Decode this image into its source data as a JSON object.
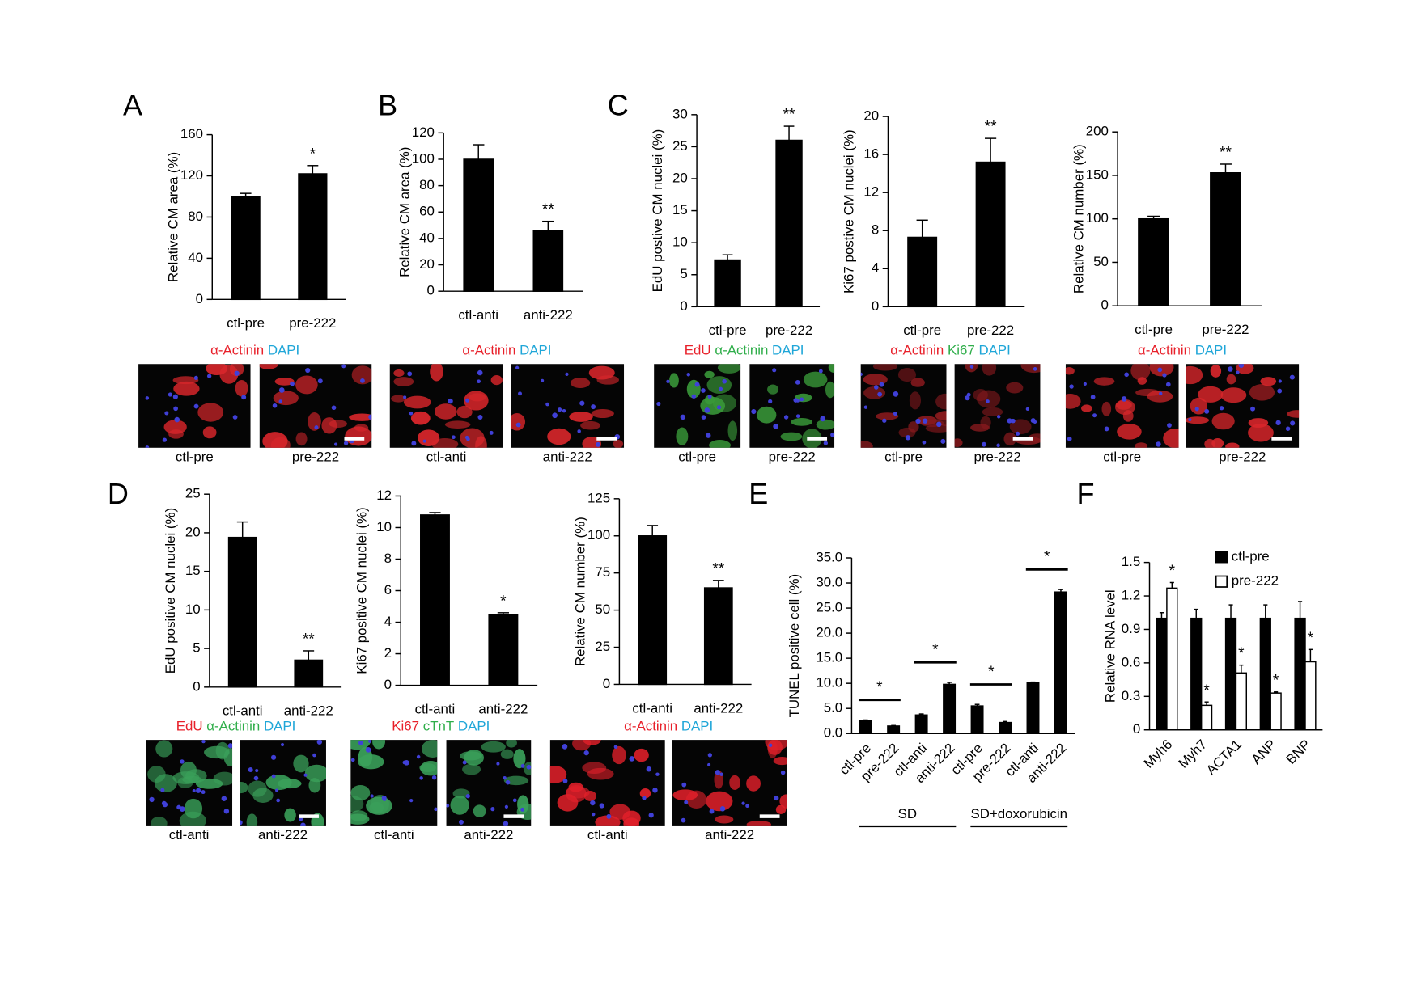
{
  "chart_data": [
    {
      "type": "bar",
      "panel": "A",
      "ylabel": "Relative CM area (%)",
      "categories": [
        "ctl-pre",
        "pre-222"
      ],
      "values": [
        100,
        122
      ],
      "errors": [
        3,
        8
      ],
      "significance": [
        null,
        "*"
      ],
      "color": "#000000",
      "ylim": [
        0,
        160
      ],
      "yticks": [
        0,
        40,
        80,
        120,
        160
      ],
      "micrographs": {
        "stain": [
          {
            "text": "α-Actinin",
            "color": "#e8202a"
          },
          {
            "text": "DAPI",
            "color": "#1fa6d8"
          }
        ],
        "labels": [
          "ctl-pre",
          "pre-222"
        ],
        "image_color": "#d8262b"
      }
    },
    {
      "type": "bar",
      "panel": "B",
      "ylabel": "Relative CM area (%)",
      "categories": [
        "ctl-anti",
        "anti-222"
      ],
      "values": [
        100,
        46
      ],
      "errors": [
        11,
        7
      ],
      "significance": [
        null,
        "**"
      ],
      "color": "#000000",
      "ylim": [
        0,
        120
      ],
      "yticks": [
        0,
        20,
        40,
        60,
        80,
        100,
        120
      ],
      "micrographs": {
        "stain": [
          {
            "text": "α-Actinin",
            "color": "#e8202a"
          },
          {
            "text": "DAPI",
            "color": "#1fa6d8"
          }
        ],
        "labels": [
          "ctl-anti",
          "anti-222"
        ],
        "image_color": "#d8262b"
      }
    },
    {
      "type": "bar",
      "panel": "C",
      "ylabel": "EdU postive CM nuclei (%)",
      "categories": [
        "ctl-pre",
        "pre-222"
      ],
      "values": [
        7.3,
        26
      ],
      "errors": [
        0.8,
        2.2
      ],
      "significance": [
        null,
        "**"
      ],
      "color": "#000000",
      "ylim": [
        0,
        30
      ],
      "yticks": [
        0,
        5,
        10,
        15,
        20,
        25,
        30
      ],
      "micrographs": {
        "stain": [
          {
            "text": "EdU",
            "color": "#e8202a"
          },
          {
            "text": "α-Actinin",
            "color": "#2fae4a"
          },
          {
            "text": "DAPI",
            "color": "#1fa6d8"
          }
        ],
        "labels": [
          "ctl-pre",
          "pre-222"
        ],
        "image_color": "#3a9a3a"
      }
    },
    {
      "type": "bar",
      "ylabel": "Ki67 postive CM nuclei (%)",
      "categories": [
        "ctl-pre",
        "pre-222"
      ],
      "values": [
        7.3,
        15.2
      ],
      "errors": [
        1.8,
        2.5
      ],
      "significance": [
        null,
        "**"
      ],
      "color": "#000000",
      "ylim": [
        0,
        20
      ],
      "yticks": [
        0,
        4,
        8,
        12,
        16,
        20
      ],
      "micrographs": {
        "stain": [
          {
            "text": "α-Actinin",
            "color": "#e8202a"
          },
          {
            "text": "Ki67",
            "color": "#2fae4a"
          },
          {
            "text": "DAPI",
            "color": "#1fa6d8"
          }
        ],
        "labels": [
          "ctl-pre",
          "pre-222"
        ],
        "image_color": "#8a1a1e"
      }
    },
    {
      "type": "bar",
      "ylabel": "Relative CM number (%)",
      "categories": [
        "ctl-pre",
        "pre-222"
      ],
      "values": [
        100,
        153
      ],
      "errors": [
        3,
        10
      ],
      "significance": [
        null,
        "**"
      ],
      "color": "#000000",
      "ylim": [
        0,
        200
      ],
      "yticks": [
        0,
        50,
        100,
        150,
        200
      ],
      "micrographs": {
        "stain": [
          {
            "text": "α-Actinin",
            "color": "#e8202a"
          },
          {
            "text": "DAPI",
            "color": "#1fa6d8"
          }
        ],
        "labels": [
          "ctl-pre",
          "pre-222"
        ],
        "image_color": "#d8262b"
      }
    },
    {
      "type": "bar",
      "panel": "D",
      "ylabel": "EdU positive CM nuclei (%)",
      "categories": [
        "ctl-anti",
        "anti-222"
      ],
      "values": [
        19.4,
        3.5
      ],
      "errors": [
        2,
        1.2
      ],
      "significance": [
        null,
        "**"
      ],
      "color": "#000000",
      "ylim": [
        0,
        25
      ],
      "yticks": [
        0,
        5,
        10,
        15,
        20,
        25
      ],
      "micrographs": {
        "stain": [
          {
            "text": "EdU",
            "color": "#e8202a"
          },
          {
            "text": "α-Actinin",
            "color": "#2fae4a"
          },
          {
            "text": "DAPI",
            "color": "#1fa6d8"
          }
        ],
        "labels": [
          "ctl-anti",
          "anti-222"
        ],
        "image_color": "#3aa05a"
      }
    },
    {
      "type": "bar",
      "ylabel": "Ki67 positive CM nuclei (%)",
      "categories": [
        "ctl-anti",
        "anti-222"
      ],
      "values": [
        10.8,
        4.5
      ],
      "errors": [
        0.15,
        0.1
      ],
      "significance": [
        null,
        "*"
      ],
      "color": "#000000",
      "ylim": [
        0,
        12
      ],
      "yticks": [
        0,
        2,
        4,
        6,
        8,
        10,
        12
      ],
      "micrographs": {
        "stain": [
          {
            "text": "Ki67",
            "color": "#e8202a"
          },
          {
            "text": "cTnT",
            "color": "#2fae4a"
          },
          {
            "text": "DAPI",
            "color": "#1fa6d8"
          }
        ],
        "labels": [
          "ctl-anti",
          "anti-222"
        ],
        "image_color": "#3aa05a"
      }
    },
    {
      "type": "bar",
      "ylabel": "Relative CM number (%)",
      "categories": [
        "ctl-anti",
        "anti-222"
      ],
      "values": [
        100,
        65
      ],
      "errors": [
        7,
        5
      ],
      "significance": [
        null,
        "**"
      ],
      "color": "#000000",
      "ylim": [
        0,
        125
      ],
      "yticks": [
        0,
        25,
        50,
        75,
        100,
        125
      ],
      "micrographs": {
        "stain": [
          {
            "text": "α-Actinin",
            "color": "#e8202a"
          },
          {
            "text": "DAPI",
            "color": "#1fa6d8"
          }
        ],
        "labels": [
          "ctl-anti",
          "anti-222"
        ],
        "image_color": "#e0202a"
      }
    },
    {
      "type": "bar",
      "panel": "E",
      "ylabel": "TUNEL positive cell (%)",
      "categories": [
        "ctl-pre",
        "pre-222",
        "ctl-anti",
        "anti-222",
        "ctl-pre",
        "pre-222",
        "ctl-anti",
        "anti-222"
      ],
      "values": [
        2.6,
        1.5,
        3.7,
        9.8,
        5.5,
        2.2,
        10.2,
        28.2
      ],
      "errors": [
        0.1,
        0.1,
        0.2,
        0.4,
        0.3,
        0.2,
        0.05,
        0.5
      ],
      "significance": [
        null,
        "*",
        null,
        "*",
        null,
        "*",
        null,
        "*"
      ],
      "bracket": true,
      "color": "#000000",
      "ylim": [
        0,
        35
      ],
      "yticks": [
        {
          "value": 0,
          "label": "0.0"
        },
        {
          "value": 5,
          "label": "5.0"
        },
        {
          "value": 10,
          "label": "10.0"
        },
        {
          "value": 15,
          "label": "15.0"
        },
        {
          "value": 20,
          "label": "20.0"
        },
        {
          "value": 25,
          "label": "25.0"
        },
        {
          "value": 30,
          "label": "30.0"
        },
        {
          "value": 35,
          "label": "35.0"
        }
      ],
      "groups": [
        "SD",
        "SD+doxorubicin"
      ]
    },
    {
      "type": "bar",
      "panel": "F",
      "ylabel": "Relative RNA level",
      "categories": [
        "Myh6",
        "Myh7",
        "ACTA1",
        "ANP",
        "BNP"
      ],
      "ylim": [
        0,
        1.5
      ],
      "yticks": [
        0,
        0.3,
        0.6,
        0.9,
        1.2,
        1.5
      ],
      "legend": "top-right",
      "series": [
        {
          "name": "ctl-pre",
          "color": "#000000",
          "values": [
            1,
            1,
            1,
            1,
            1
          ],
          "errors": [
            0.05,
            0.08,
            0.12,
            0.12,
            0.15
          ]
        },
        {
          "name": "pre-222",
          "color": "#ffffff",
          "values": [
            1.27,
            0.22,
            0.51,
            0.33,
            0.61
          ],
          "errors": [
            0.05,
            0.03,
            0.07,
            0.01,
            0.11
          ],
          "significance": [
            "*",
            "*",
            "*",
            "*",
            "*"
          ]
        }
      ]
    }
  ]
}
